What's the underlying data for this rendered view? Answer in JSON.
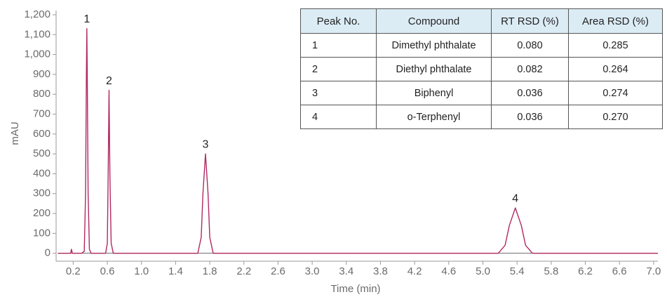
{
  "chart_data": {
    "type": "line",
    "x_label": "Time (min)",
    "y_label": "mAU",
    "color": "#b02a62",
    "xlim": [
      0,
      7.05
    ],
    "ylim": [
      -40,
      1200
    ],
    "xticks": [
      0.2,
      0.6,
      {
        "value": 1.0,
        "label": "1.0"
      },
      1.4,
      1.8,
      2.2,
      2.6,
      {
        "value": 3.0,
        "label": "3.0"
      },
      3.4,
      3.8,
      4.2,
      4.6,
      {
        "value": 5.0,
        "label": "5.0"
      },
      5.4,
      5.8,
      6.2,
      6.6,
      {
        "value": 7.0,
        "label": "7.0"
      }
    ],
    "yticks": [
      0,
      100,
      200,
      300,
      400,
      500,
      600,
      700,
      800,
      900,
      {
        "value": 1000,
        "label": "1,000"
      },
      {
        "value": 1100,
        "label": "1,100"
      },
      {
        "value": 1200,
        "label": "1,200"
      }
    ],
    "x": [
      0.02,
      0.17,
      0.18,
      0.19,
      0.3,
      0.33,
      0.345,
      0.355,
      0.36,
      0.365,
      0.375,
      0.39,
      0.41,
      0.58,
      0.6,
      0.61,
      0.62,
      0.63,
      0.645,
      0.67,
      1.66,
      1.7,
      1.72,
      1.75,
      1.78,
      1.8,
      1.84,
      5.18,
      5.26,
      5.31,
      5.38,
      5.45,
      5.5,
      5.58,
      7.05
    ],
    "values": [
      0,
      0,
      20,
      0,
      0,
      10,
      300,
      900,
      1130,
      900,
      300,
      20,
      0,
      0,
      50,
      400,
      820,
      400,
      50,
      0,
      0,
      80,
      300,
      500,
      300,
      80,
      0,
      0,
      40,
      140,
      228,
      140,
      40,
      0,
      0
    ],
    "peaks": [
      {
        "label": "1",
        "x": 0.36,
        "y": 1130
      },
      {
        "label": "2",
        "x": 0.62,
        "y": 820
      },
      {
        "label": "3",
        "x": 1.75,
        "y": 500
      },
      {
        "label": "4",
        "x": 5.38,
        "y": 228
      }
    ]
  },
  "table": {
    "header": [
      "Peak No.",
      "Compound",
      "RT RSD (%)",
      "Area RSD (%)"
    ],
    "rows": [
      [
        "1",
        "Dimethyl phthalate",
        "0.080",
        "0.285"
      ],
      [
        "2",
        "Diethyl phthalate",
        "0.082",
        "0.264"
      ],
      [
        "3",
        "Biphenyl",
        "0.036",
        "0.274"
      ],
      [
        "4",
        "o-Terphenyl",
        "0.036",
        "0.270"
      ]
    ]
  }
}
